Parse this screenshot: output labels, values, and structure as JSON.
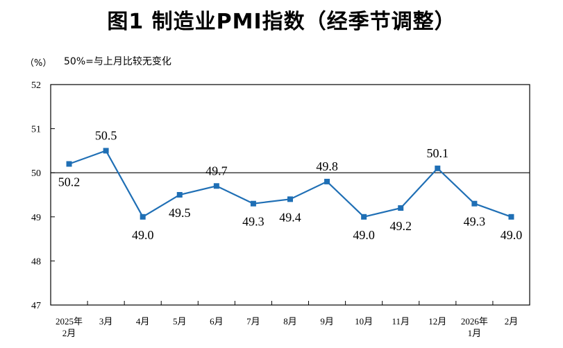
{
  "chart_data": {
    "type": "line",
    "title": "图1  制造业PMI指数（经季节调整）",
    "unit_label": "（%）",
    "reference_note": "50%=与上月比较无变化",
    "ylim": [
      47,
      52
    ],
    "yticks": [
      "47",
      "48",
      "49",
      "50",
      "51",
      "52"
    ],
    "reference_line": 50,
    "categories": [
      [
        "2025年",
        "2月"
      ],
      [
        "3月"
      ],
      [
        "4月"
      ],
      [
        "5月"
      ],
      [
        "6月"
      ],
      [
        "7月"
      ],
      [
        "8月"
      ],
      [
        "9月"
      ],
      [
        "10月"
      ],
      [
        "11月"
      ],
      [
        "12月"
      ],
      [
        "2026年",
        "1月"
      ],
      [
        "2月"
      ]
    ],
    "values": [
      50.2,
      50.5,
      49.0,
      49.5,
      49.7,
      49.3,
      49.4,
      49.8,
      49.0,
      49.2,
      50.1,
      49.3,
      49.0
    ],
    "data_labels": [
      "50.2",
      "50.5",
      "49.0",
      "49.5",
      "49.7",
      "49.3",
      "49.4",
      "49.8",
      "49.0",
      "49.2",
      "50.1",
      "49.3",
      "49.0"
    ],
    "line_color": "#1f6fb5",
    "grid": false
  }
}
